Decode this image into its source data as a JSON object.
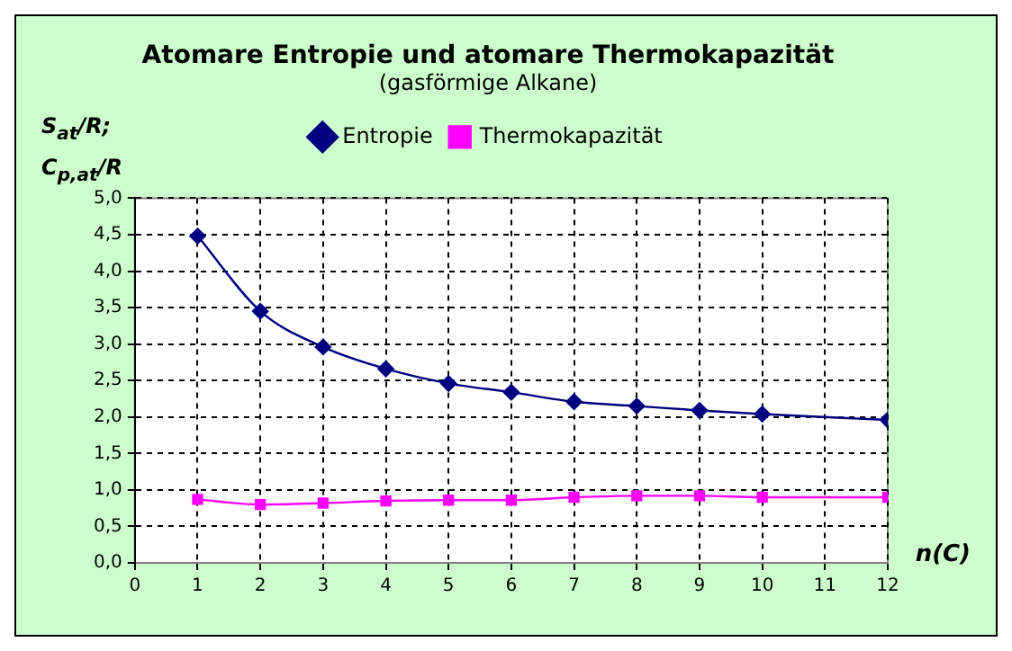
{
  "chart_data": {
    "type": "line",
    "title": "Atomare Entropie und atomare Thermokapazität",
    "subtitle": "(gasförmige Alkane)",
    "xlabel": "n(C)",
    "ylabel": "S$_{at}$/R;\nC$_{p,at}$/R",
    "x": [
      1,
      2,
      3,
      4,
      5,
      6,
      7,
      8,
      9,
      10,
      12
    ],
    "series": [
      {
        "name": "Entropie",
        "color": "#000080",
        "marker": "diamond",
        "values": [
          4.48,
          3.45,
          2.96,
          2.66,
          2.46,
          2.34,
          2.21,
          2.15,
          2.09,
          2.04,
          1.96
        ]
      },
      {
        "name": "Thermokapazität",
        "color": "#ff00ff",
        "marker": "square",
        "values": [
          0.87,
          0.8,
          0.82,
          0.85,
          0.86,
          0.86,
          0.9,
          0.92,
          0.92,
          0.9,
          0.9
        ]
      }
    ],
    "xlim": [
      0,
      12
    ],
    "xticks": [
      0,
      1,
      2,
      3,
      4,
      5,
      6,
      7,
      8,
      9,
      10,
      11,
      12
    ],
    "ylim": [
      0,
      5
    ],
    "yticks": [
      {
        "value": 0,
        "label": "0,0"
      },
      {
        "value": 0.5,
        "label": "0,5"
      },
      {
        "value": 1,
        "label": "1,0"
      },
      {
        "value": 1.5,
        "label": "1,5"
      },
      {
        "value": 2,
        "label": "2,0"
      },
      {
        "value": 2.5,
        "label": "2,5"
      },
      {
        "value": 3,
        "label": "3,0"
      },
      {
        "value": 3.5,
        "label": "3,5"
      },
      {
        "value": 4,
        "label": "4,0"
      },
      {
        "value": 4.5,
        "label": "4,5"
      },
      {
        "value": 5,
        "label": "5,0"
      }
    ],
    "grid": true,
    "legend": "top",
    "line_style": "solid"
  }
}
